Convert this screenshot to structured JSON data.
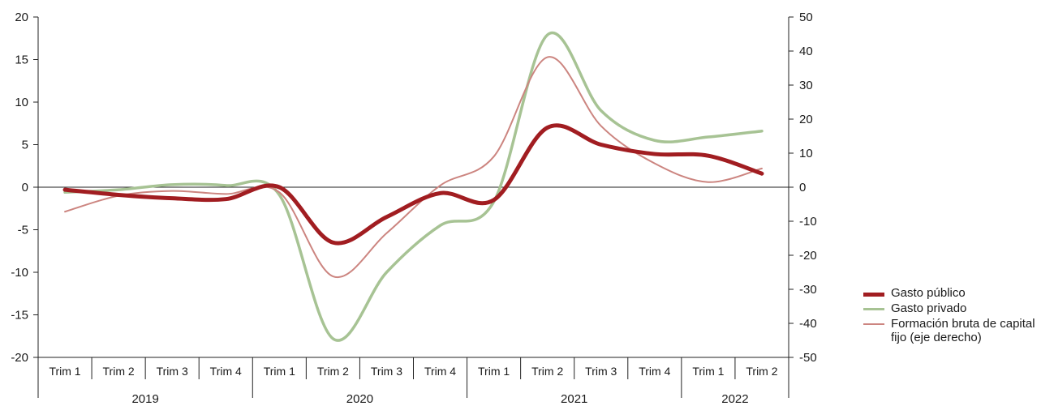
{
  "chart_data": {
    "type": "line",
    "quarters": [
      "Trim 1",
      "Trim 2",
      "Trim 3",
      "Trim 4",
      "Trim 1",
      "Trim 2",
      "Trim 3",
      "Trim 4",
      "Trim 1",
      "Trim 2",
      "Trim 3",
      "Trim 4",
      "Trim 1",
      "Trim 2"
    ],
    "years": [
      {
        "label": "2019",
        "span": 4
      },
      {
        "label": "2020",
        "span": 4
      },
      {
        "label": "2021",
        "span": 4
      },
      {
        "label": "2022",
        "span": 2
      }
    ],
    "y_left": {
      "min": -20,
      "max": 20,
      "step": 5,
      "ticks": [
        "-20",
        "-15",
        "-10",
        "-5",
        "0",
        "5",
        "10",
        "15",
        "20"
      ]
    },
    "y_right": {
      "min": -50,
      "max": 50,
      "step": 10,
      "ticks": [
        "-50",
        "-40",
        "-30",
        "-20",
        "-10",
        "0",
        "10",
        "20",
        "30",
        "40",
        "50"
      ]
    },
    "series": [
      {
        "name": "Gasto público",
        "axis": "left",
        "color": "#a11d21",
        "values": [
          -0.3,
          -0.9,
          -1.3,
          -1.4,
          0.0,
          -6.5,
          -3.5,
          -0.7,
          -1.5,
          7.0,
          5.0,
          3.9,
          3.7,
          1.6
        ]
      },
      {
        "name": "Gasto privado",
        "axis": "left",
        "color": "#a7c394",
        "values": [
          -0.6,
          -0.3,
          0.3,
          0.2,
          -0.9,
          -17.8,
          -10.0,
          -4.5,
          -1.7,
          17.9,
          9.0,
          5.5,
          5.9,
          6.6
        ]
      },
      {
        "name": "Formación bruta de capital fijo (eje derecho)",
        "axis": "right",
        "color": "#cc8580",
        "values": [
          -7.2,
          -2.5,
          -1.1,
          -2.0,
          -1.5,
          -26.2,
          -13.5,
          0.5,
          9.0,
          38.2,
          18.0,
          7.0,
          1.5,
          5.5
        ]
      }
    ]
  },
  "legend": [
    {
      "label": "Gasto público",
      "color": "#a11d21",
      "thickness": 5
    },
    {
      "label": "Gasto privado",
      "color": "#a7c394",
      "thickness": 3
    },
    {
      "label": "Formación bruta de capital fijo (eje derecho)",
      "color": "#cc8580",
      "thickness": 2
    }
  ]
}
